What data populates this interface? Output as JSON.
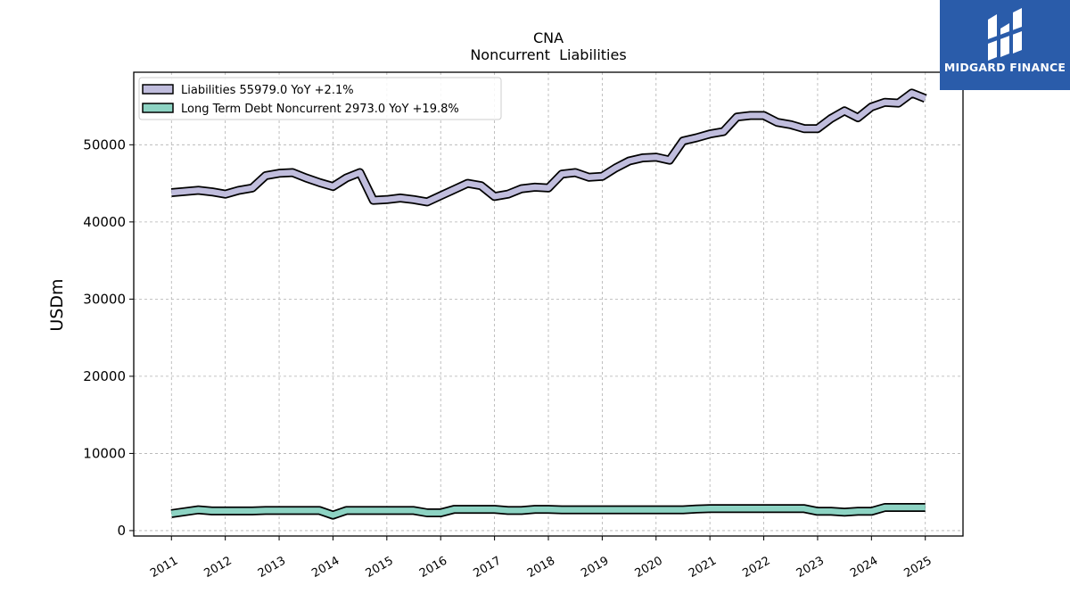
{
  "chart_data": {
    "type": "line",
    "title": "CNA",
    "subtitle": "Noncurrent  Liabilities",
    "ylabel": "USDm",
    "xlabel": "",
    "ylim": [
      -700,
      59400
    ],
    "xlim": [
      2010.3,
      2025.7
    ],
    "yticks": [
      0,
      10000,
      20000,
      30000,
      40000,
      50000
    ],
    "xticks": [
      "2011",
      "2012",
      "2013",
      "2014",
      "2015",
      "2016",
      "2017",
      "2018",
      "2019",
      "2020",
      "2021",
      "2022",
      "2023",
      "2024",
      "2025"
    ],
    "grid": true,
    "legend_position": "top-left",
    "series": [
      {
        "name": "Liabilities",
        "legend": "Liabilities  55979.0 YoY +2.1%",
        "color": "#c0bddd",
        "points": [
          [
            2011.0,
            43800
          ],
          [
            2011.5,
            44100
          ],
          [
            2011.75,
            43900
          ],
          [
            2012.0,
            43600
          ],
          [
            2012.25,
            44100
          ],
          [
            2012.5,
            44400
          ],
          [
            2012.75,
            46000
          ],
          [
            2013.0,
            46300
          ],
          [
            2013.25,
            46400
          ],
          [
            2013.5,
            45700
          ],
          [
            2013.75,
            45100
          ],
          [
            2014.0,
            44600
          ],
          [
            2014.25,
            45700
          ],
          [
            2014.5,
            46400
          ],
          [
            2014.75,
            42800
          ],
          [
            2015.0,
            42900
          ],
          [
            2015.25,
            43100
          ],
          [
            2015.5,
            42900
          ],
          [
            2015.75,
            42600
          ],
          [
            2016.0,
            43400
          ],
          [
            2016.25,
            44200
          ],
          [
            2016.5,
            45000
          ],
          [
            2016.75,
            44700
          ],
          [
            2017.0,
            43300
          ],
          [
            2017.25,
            43600
          ],
          [
            2017.5,
            44300
          ],
          [
            2017.75,
            44500
          ],
          [
            2018.0,
            44400
          ],
          [
            2018.25,
            46200
          ],
          [
            2018.5,
            46400
          ],
          [
            2018.75,
            45800
          ],
          [
            2019.0,
            45900
          ],
          [
            2019.25,
            47000
          ],
          [
            2019.5,
            47900
          ],
          [
            2019.75,
            48300
          ],
          [
            2020.0,
            48400
          ],
          [
            2020.25,
            48000
          ],
          [
            2020.5,
            50500
          ],
          [
            2020.75,
            50900
          ],
          [
            2021.0,
            51400
          ],
          [
            2021.25,
            51700
          ],
          [
            2021.5,
            53600
          ],
          [
            2021.75,
            53800
          ],
          [
            2022.0,
            53800
          ],
          [
            2022.25,
            52900
          ],
          [
            2022.5,
            52600
          ],
          [
            2022.75,
            52100
          ],
          [
            2023.0,
            52100
          ],
          [
            2023.25,
            53400
          ],
          [
            2023.5,
            54400
          ],
          [
            2023.75,
            53500
          ],
          [
            2024.0,
            54900
          ],
          [
            2024.25,
            55500
          ],
          [
            2024.5,
            55400
          ],
          [
            2024.75,
            56700
          ],
          [
            2025.0,
            56000
          ]
        ]
      },
      {
        "name": "Long Term Debt Noncurrent",
        "legend": "Long Term Debt Noncurrent  2973.0 YoY +19.8%",
        "color": "#8dd3c3",
        "points": [
          [
            2011.0,
            2200
          ],
          [
            2011.5,
            2700
          ],
          [
            2011.75,
            2550
          ],
          [
            2012.0,
            2550
          ],
          [
            2012.5,
            2550
          ],
          [
            2012.75,
            2600
          ],
          [
            2013.0,
            2600
          ],
          [
            2013.75,
            2600
          ],
          [
            2014.0,
            2000
          ],
          [
            2014.25,
            2600
          ],
          [
            2014.5,
            2600
          ],
          [
            2015.0,
            2600
          ],
          [
            2015.5,
            2600
          ],
          [
            2015.75,
            2300
          ],
          [
            2016.0,
            2300
          ],
          [
            2016.25,
            2750
          ],
          [
            2017.0,
            2750
          ],
          [
            2017.25,
            2600
          ],
          [
            2017.5,
            2600
          ],
          [
            2017.75,
            2750
          ],
          [
            2018.0,
            2750
          ],
          [
            2018.25,
            2700
          ],
          [
            2019.0,
            2700
          ],
          [
            2020.0,
            2700
          ],
          [
            2020.5,
            2700
          ],
          [
            2020.75,
            2800
          ],
          [
            2021.0,
            2850
          ],
          [
            2022.75,
            2850
          ],
          [
            2023.0,
            2500
          ],
          [
            2023.25,
            2500
          ],
          [
            2023.5,
            2400
          ],
          [
            2023.75,
            2500
          ],
          [
            2024.0,
            2500
          ],
          [
            2024.25,
            3000
          ],
          [
            2025.0,
            3000
          ]
        ]
      }
    ]
  },
  "brand": {
    "name": "MIDGARD FINANCE",
    "logo_icon": "midgard-logo-icon",
    "bg_color": "#2a5caa"
  }
}
